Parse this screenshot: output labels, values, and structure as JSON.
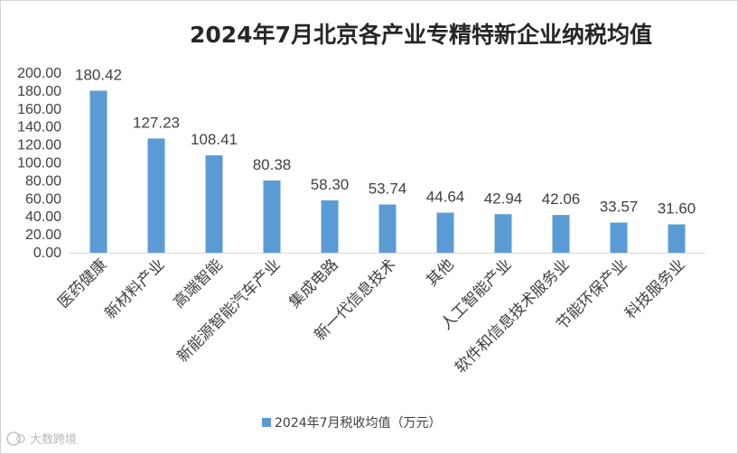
{
  "chart_data": {
    "type": "bar",
    "title": "2024年7月北京各产业专精特新企业纳税均值",
    "categories": [
      "医药健康",
      "新材料产业",
      "高端智能",
      "新能源智能汽车产业",
      "集成电路",
      "新一代信息技术",
      "其他",
      "人工智能产业",
      "软件和信息技术服务业",
      "节能环保产业",
      "科技服务业"
    ],
    "series": [
      {
        "name": "2024年7月税收均值（万元）",
        "values": [
          180.42,
          127.23,
          108.41,
          80.38,
          58.3,
          53.74,
          44.64,
          42.94,
          42.06,
          33.57,
          31.6
        ],
        "color": "#5b9bd5"
      }
    ],
    "value_labels": [
      "180.42",
      "127.23",
      "108.41",
      "80.38",
      "58.30",
      "53.74",
      "44.64",
      "42.94",
      "42.06",
      "33.57",
      "31.60"
    ],
    "y_ticks": [
      "0.00",
      "20.00",
      "40.00",
      "60.00",
      "80.00",
      "100.00",
      "120.00",
      "140.00",
      "160.00",
      "180.00",
      "200.00"
    ],
    "ylim": [
      0,
      200
    ],
    "xlabel": "",
    "ylabel": "",
    "grid": false,
    "legend_position": "bottom"
  },
  "watermark": {
    "text": "大数跨境",
    "icon": "db-logo-icon"
  }
}
